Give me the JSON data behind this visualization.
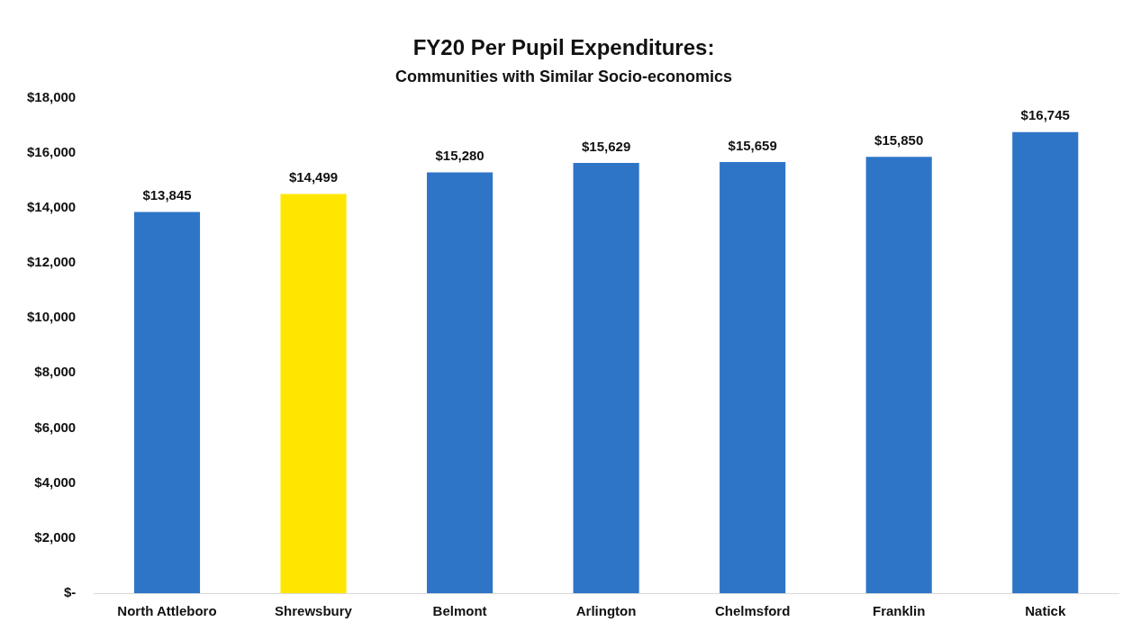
{
  "chart_data": {
    "type": "bar",
    "title": "FY20 Per Pupil Expenditures:",
    "subtitle": "Communities with Similar Socio-economics",
    "categories": [
      "North Attleboro",
      "Shrewsbury",
      "Belmont",
      "Arlington",
      "Chelmsford",
      "Franklin",
      "Natick"
    ],
    "values": [
      13845,
      14499,
      15280,
      15629,
      15659,
      15850,
      16745
    ],
    "colors": [
      "#2e75c8",
      "#ffe600",
      "#2e75c8",
      "#2e75c8",
      "#2e75c8",
      "#2e75c8",
      "#2e75c8"
    ],
    "value_labels": [
      "$13,845",
      "$14,499",
      "$15,280",
      "$15,629",
      "$15,659",
      "$15,850",
      "$16,745"
    ],
    "ylim": [
      0,
      18000
    ],
    "yticks": [
      {
        "value": 0,
        "label": "$-"
      },
      {
        "value": 2000,
        "label": "$2,000"
      },
      {
        "value": 4000,
        "label": "$4,000"
      },
      {
        "value": 6000,
        "label": "$6,000"
      },
      {
        "value": 8000,
        "label": "$8,000"
      },
      {
        "value": 10000,
        "label": "$10,000"
      },
      {
        "value": 12000,
        "label": "$12,000"
      },
      {
        "value": 14000,
        "label": "$14,000"
      },
      {
        "value": 16000,
        "label": "$16,000"
      },
      {
        "value": 18000,
        "label": "$18,000"
      }
    ],
    "grid": false,
    "legend": false
  }
}
